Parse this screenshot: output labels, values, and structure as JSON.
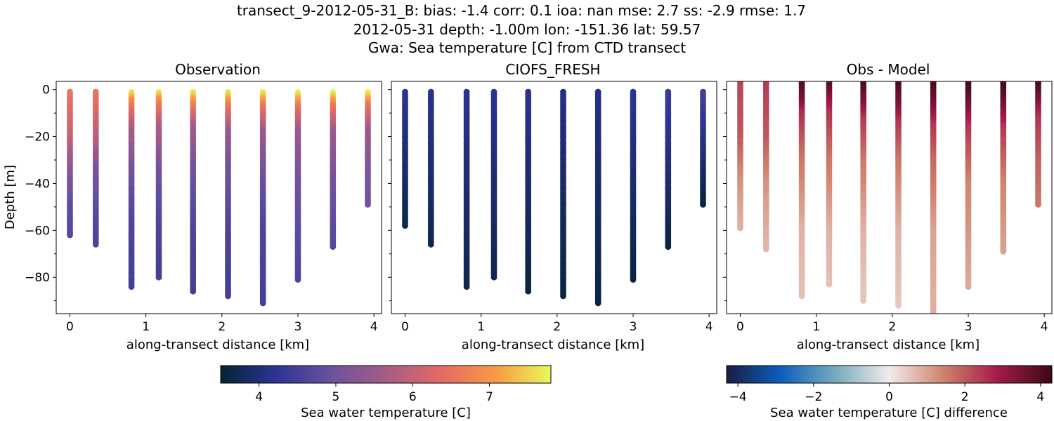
{
  "title": {
    "line1": "transect_9-2012-05-31_B: bias: -1.4  corr: 0.1  ioa: nan  mse: 2.7  ss: -2.9  rmse: 1.7",
    "line2": "2012-05-31 depth: -1.00m lon: -151.36 lat: 59.57",
    "line3": "Gwa: Sea temperature [C] from CTD transect"
  },
  "chart_data": [
    {
      "type": "scatter",
      "title": "Observation",
      "xlabel": "along-transect distance [km]",
      "ylabel": "Depth [m]",
      "xlim": [
        -0.18,
        4.1
      ],
      "ylim": [
        -95.5,
        3.5
      ],
      "xticks": [
        0,
        1,
        2,
        3,
        4
      ],
      "yticks": [
        0,
        -20,
        -40,
        -60,
        -80
      ],
      "colormap": "thermal",
      "profiles": [
        {
          "x": 0.0,
          "min_depth": -1,
          "max_depth": -62,
          "values": [
            [
              -1,
              6.6
            ],
            [
              -20,
              6.0
            ],
            [
              -35,
              5.3
            ],
            [
              -50,
              4.8
            ],
            [
              -62,
              4.7
            ]
          ]
        },
        {
          "x": 0.34,
          "min_depth": -1,
          "max_depth": -66,
          "values": [
            [
              -1,
              6.6
            ],
            [
              -20,
              5.9
            ],
            [
              -35,
              5.1
            ],
            [
              -55,
              4.7
            ],
            [
              -66,
              4.6
            ]
          ]
        },
        {
          "x": 0.81,
          "min_depth": -1,
          "max_depth": -84,
          "values": [
            [
              -1,
              7.7
            ],
            [
              -5,
              6.8
            ],
            [
              -15,
              5.8
            ],
            [
              -35,
              5.0
            ],
            [
              -60,
              4.6
            ],
            [
              -84,
              4.5
            ]
          ]
        },
        {
          "x": 1.17,
          "min_depth": -1,
          "max_depth": -80,
          "values": [
            [
              -1,
              7.7
            ],
            [
              -5,
              6.8
            ],
            [
              -15,
              5.8
            ],
            [
              -35,
              5.0
            ],
            [
              -60,
              4.6
            ],
            [
              -80,
              4.5
            ]
          ]
        },
        {
          "x": 1.62,
          "min_depth": -1,
          "max_depth": -86,
          "values": [
            [
              -1,
              7.7
            ],
            [
              -6,
              6.8
            ],
            [
              -15,
              5.7
            ],
            [
              -35,
              5.0
            ],
            [
              -60,
              4.6
            ],
            [
              -86,
              4.5
            ]
          ]
        },
        {
          "x": 2.08,
          "min_depth": -1,
          "max_depth": -88,
          "values": [
            [
              -1,
              7.7
            ],
            [
              -7,
              6.6
            ],
            [
              -18,
              5.5
            ],
            [
              -35,
              5.0
            ],
            [
              -60,
              4.6
            ],
            [
              -88,
              4.5
            ]
          ]
        },
        {
          "x": 2.54,
          "min_depth": -1,
          "max_depth": -91,
          "values": [
            [
              -1,
              7.7
            ],
            [
              -7,
              6.6
            ],
            [
              -18,
              5.5
            ],
            [
              -35,
              5.0
            ],
            [
              -60,
              4.6
            ],
            [
              -91,
              4.5
            ]
          ]
        },
        {
          "x": 3.0,
          "min_depth": -1,
          "max_depth": -81,
          "values": [
            [
              -1,
              7.8
            ],
            [
              -7,
              6.6
            ],
            [
              -18,
              5.5
            ],
            [
              -40,
              5.0
            ],
            [
              -81,
              4.6
            ]
          ]
        },
        {
          "x": 3.46,
          "min_depth": -1,
          "max_depth": -67,
          "values": [
            [
              -1,
              7.8
            ],
            [
              -7,
              6.6
            ],
            [
              -18,
              5.5
            ],
            [
              -40,
              5.0
            ],
            [
              -67,
              4.7
            ]
          ]
        },
        {
          "x": 3.92,
          "min_depth": -1,
          "max_depth": -49,
          "values": [
            [
              -1,
              7.8
            ],
            [
              -7,
              6.5
            ],
            [
              -18,
              5.5
            ],
            [
              -35,
              5.2
            ],
            [
              -49,
              5.0
            ]
          ]
        }
      ]
    },
    {
      "type": "scatter",
      "title": "CIOFS_FRESH",
      "xlabel": "along-transect distance [km]",
      "xlim": [
        -0.18,
        4.1
      ],
      "ylim": [
        -95.5,
        3.5
      ],
      "xticks": [
        0,
        1,
        2,
        3,
        4
      ],
      "colormap": "thermal",
      "profiles": [
        {
          "x": 0.0,
          "min_depth": -1,
          "max_depth": -58,
          "values": [
            [
              -1,
              4.2
            ],
            [
              -58,
              3.7
            ]
          ]
        },
        {
          "x": 0.34,
          "min_depth": -1,
          "max_depth": -66,
          "values": [
            [
              -1,
              4.2
            ],
            [
              -66,
              3.7
            ]
          ]
        },
        {
          "x": 0.81,
          "min_depth": -1,
          "max_depth": -84,
          "values": [
            [
              -1,
              4.2
            ],
            [
              -84,
              3.7
            ]
          ]
        },
        {
          "x": 1.17,
          "min_depth": -1,
          "max_depth": -80,
          "values": [
            [
              -1,
              4.2
            ],
            [
              -80,
              3.7
            ]
          ]
        },
        {
          "x": 1.62,
          "min_depth": -1,
          "max_depth": -86,
          "values": [
            [
              -1,
              4.2
            ],
            [
              -86,
              3.6
            ]
          ]
        },
        {
          "x": 2.08,
          "min_depth": -1,
          "max_depth": -88,
          "values": [
            [
              -1,
              4.1
            ],
            [
              -88,
              3.6
            ]
          ]
        },
        {
          "x": 2.54,
          "min_depth": -1,
          "max_depth": -91,
          "values": [
            [
              -1,
              4.1
            ],
            [
              -91,
              3.6
            ]
          ]
        },
        {
          "x": 3.0,
          "min_depth": -1,
          "max_depth": -81,
          "values": [
            [
              -1,
              4.2
            ],
            [
              -81,
              3.6
            ]
          ]
        },
        {
          "x": 3.46,
          "min_depth": -1,
          "max_depth": -67,
          "values": [
            [
              -1,
              4.4
            ],
            [
              -67,
              3.6
            ]
          ]
        },
        {
          "x": 3.92,
          "min_depth": -1,
          "max_depth": -49,
          "values": [
            [
              -1,
              4.5
            ],
            [
              -49,
              3.6
            ]
          ]
        }
      ]
    },
    {
      "type": "scatter",
      "title": "Obs - Model",
      "xlabel": "along-transect distance [km]",
      "xlim": [
        -0.18,
        4.1
      ],
      "ylim": [
        -95.5,
        3.5
      ],
      "xticks": [
        0,
        1,
        2,
        3,
        4
      ],
      "colormap": "balance",
      "profiles": [
        {
          "x": 0.0,
          "min_depth": 3,
          "max_depth": -59,
          "values": [
            [
              3,
              2.3
            ],
            [
              -20,
              2.0
            ],
            [
              -40,
              1.2
            ],
            [
              -59,
              0.8
            ]
          ]
        },
        {
          "x": 0.34,
          "min_depth": 3,
          "max_depth": -68,
          "values": [
            [
              3,
              2.4
            ],
            [
              -20,
              2.0
            ],
            [
              -40,
              1.2
            ],
            [
              -68,
              0.7
            ]
          ]
        },
        {
          "x": 0.81,
          "min_depth": 3,
          "max_depth": -88,
          "values": [
            [
              3,
              4.0
            ],
            [
              -4,
              3.5
            ],
            [
              -10,
              2.6
            ],
            [
              -30,
              1.6
            ],
            [
              -60,
              0.8
            ],
            [
              -88,
              0.6
            ]
          ]
        },
        {
          "x": 1.17,
          "min_depth": 3,
          "max_depth": -83,
          "values": [
            [
              3,
              3.9
            ],
            [
              -4,
              3.2
            ],
            [
              -10,
              2.5
            ],
            [
              -30,
              1.6
            ],
            [
              -60,
              0.8
            ],
            [
              -83,
              0.6
            ]
          ]
        },
        {
          "x": 1.62,
          "min_depth": 3,
          "max_depth": -90,
          "values": [
            [
              3,
              4.1
            ],
            [
              -5,
              3.5
            ],
            [
              -12,
              2.5
            ],
            [
              -30,
              1.6
            ],
            [
              -60,
              0.8
            ],
            [
              -90,
              0.5
            ]
          ]
        },
        {
          "x": 2.08,
          "min_depth": 3,
          "max_depth": -92,
          "values": [
            [
              3,
              4.1
            ],
            [
              -6,
              3.4
            ],
            [
              -14,
              2.5
            ],
            [
              -30,
              1.6
            ],
            [
              -60,
              0.8
            ],
            [
              -92,
              0.5
            ]
          ]
        },
        {
          "x": 2.54,
          "min_depth": 3,
          "max_depth": -96,
          "values": [
            [
              3,
              4.2
            ],
            [
              -7,
              3.4
            ],
            [
              -15,
              2.5
            ],
            [
              -30,
              1.8
            ],
            [
              -60,
              1.0
            ],
            [
              -96,
              0.8
            ]
          ]
        },
        {
          "x": 3.0,
          "min_depth": 3,
          "max_depth": -84,
          "values": [
            [
              3,
              4.2
            ],
            [
              -8,
              3.4
            ],
            [
              -16,
              2.5
            ],
            [
              -40,
              1.4
            ],
            [
              -84,
              0.9
            ]
          ]
        },
        {
          "x": 3.46,
          "min_depth": 3,
          "max_depth": -69,
          "values": [
            [
              3,
              4.2
            ],
            [
              -8,
              3.4
            ],
            [
              -16,
              2.5
            ],
            [
              -40,
              1.4
            ],
            [
              -69,
              1.0
            ]
          ]
        },
        {
          "x": 3.92,
          "min_depth": 3,
          "max_depth": -49,
          "values": [
            [
              3,
              4.2
            ],
            [
              -5,
              3.3
            ],
            [
              -12,
              2.5
            ],
            [
              -30,
              1.9
            ],
            [
              -49,
              1.6
            ]
          ]
        }
      ]
    }
  ],
  "colorbars": [
    {
      "label": "Sea water temperature [C]",
      "range": [
        3.5,
        7.8
      ],
      "ticks": [
        4,
        5,
        6,
        7
      ],
      "colormap": "thermal"
    },
    {
      "label": "Sea water temperature [C] difference",
      "range": [
        -4.3,
        4.3
      ],
      "ticks": [
        -4,
        -2,
        0,
        2,
        4
      ],
      "colormap": "balance"
    }
  ],
  "colormaps": {
    "thermal": [
      "#042333",
      "#2c3395",
      "#6a51a0",
      "#a65c85",
      "#e36a64",
      "#f99944",
      "#e8fa5b"
    ],
    "balance": [
      "#181c43",
      "#0c5ebe",
      "#75aabe",
      "#f1ecec",
      "#d0826c",
      "#a51a49",
      "#3c0912"
    ]
  }
}
